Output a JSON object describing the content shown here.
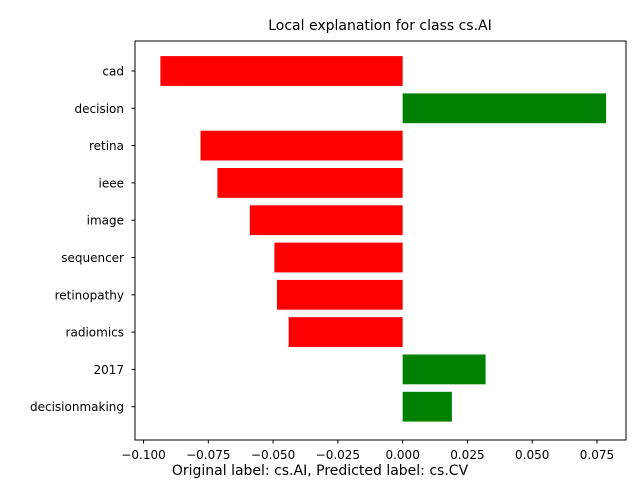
{
  "chart_data": {
    "type": "bar",
    "orientation": "horizontal",
    "title": "Local explanation for class cs.AI",
    "caption": "Original label: cs.AI, Predicted label: cs.CV",
    "xlabel": "",
    "ylabel": "",
    "categories": [
      "cad",
      "decision",
      "retina",
      "ieee",
      "image",
      "sequencer",
      "retinopathy",
      "radiomics",
      "2017",
      "decisionmaking"
    ],
    "values": [
      -0.0935,
      0.0785,
      -0.078,
      -0.0715,
      -0.059,
      -0.0495,
      -0.0485,
      -0.044,
      0.032,
      0.019
    ],
    "xlim": [
      -0.1033,
      0.0862
    ],
    "xticks": [
      -0.1,
      -0.075,
      -0.05,
      -0.025,
      0.0,
      0.025,
      0.05,
      0.075
    ],
    "xtick_labels": [
      "−0.100",
      "−0.075",
      "−0.050",
      "−0.025",
      "0.000",
      "0.025",
      "0.050",
      "0.075"
    ],
    "grid": false,
    "colors": {
      "positive": "#008000",
      "negative": "#ff0000",
      "axis": "#000000"
    }
  }
}
